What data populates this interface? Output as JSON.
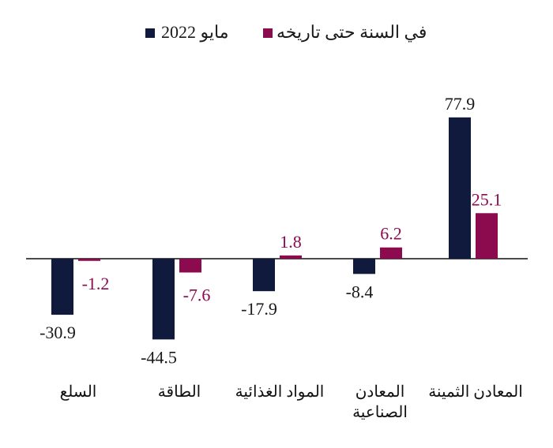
{
  "chart_data": {
    "type": "bar",
    "categories": [
      "السلع",
      "الطاقة",
      "المواد الغذائية",
      "المعادن الصناعية",
      "المعادن الثمينة"
    ],
    "series": [
      {
        "name": "مايو 2022",
        "color": "#0f1a3c",
        "values": [
          -30.9,
          -44.5,
          -17.9,
          -8.4,
          77.9
        ],
        "labels": [
          "-30.9",
          "-44.5",
          "-17.9",
          "-8.4",
          "77.9"
        ]
      },
      {
        "name": "في السنة حتى تاريخه",
        "color": "#8c0a4e",
        "values": [
          -1.2,
          -7.6,
          1.8,
          6.2,
          25.1
        ],
        "labels": [
          "-1.2",
          "-7.6",
          "1.8",
          "6.2",
          "25.1"
        ]
      }
    ],
    "legend_position": "top-center",
    "grid": false
  }
}
